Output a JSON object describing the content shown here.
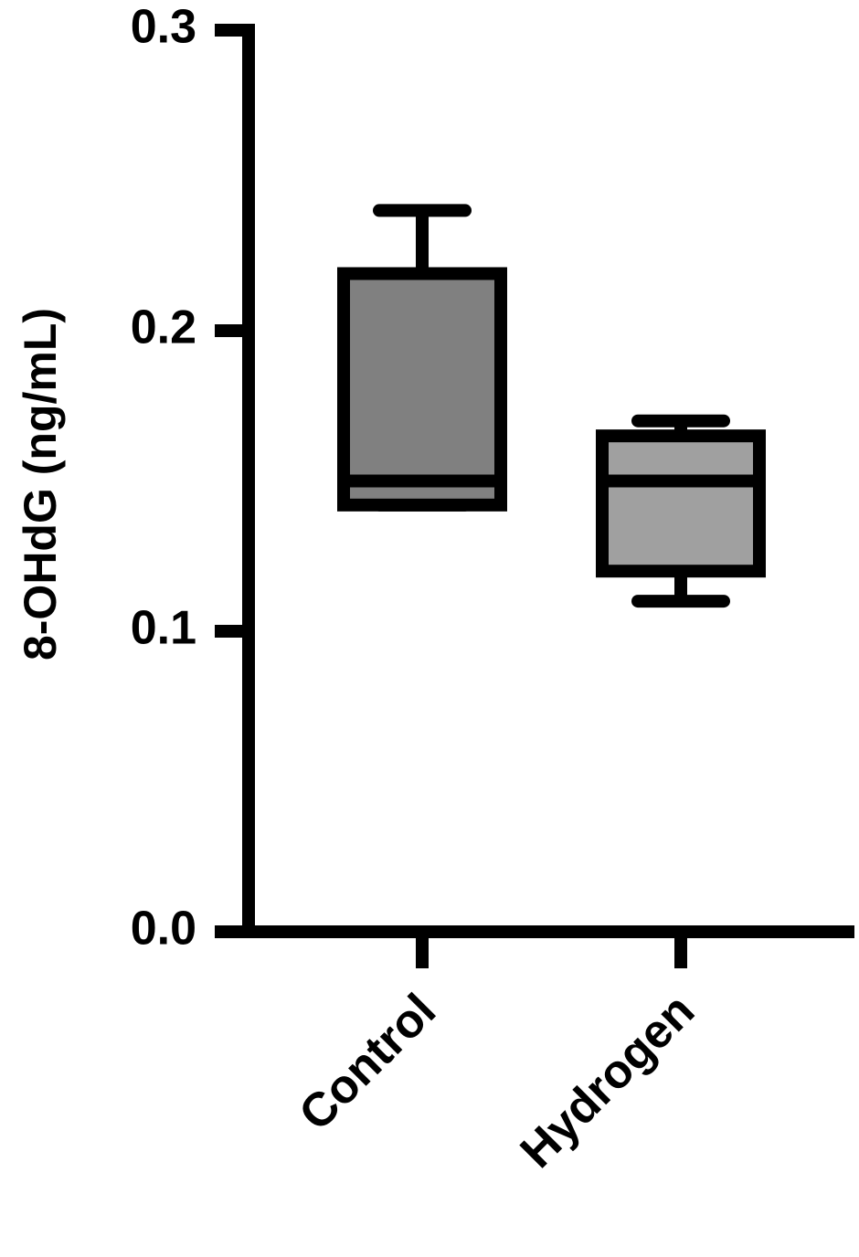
{
  "chart_data": {
    "type": "box",
    "y_label": "8-OHdG (ng/mL)",
    "categories": [
      "Control",
      "Hydrogen"
    ],
    "boxes": [
      {
        "min": 0.142,
        "q1": 0.142,
        "median": 0.15,
        "q3": 0.219,
        "max": 0.24,
        "color": "#808080"
      },
      {
        "min": 0.11,
        "q1": 0.12,
        "median": 0.15,
        "q3": 0.165,
        "max": 0.17,
        "color": "#a0a0a0"
      }
    ],
    "ylim": [
      0,
      0.3
    ],
    "yticks": [
      {
        "value": 0,
        "label": "0.0"
      },
      0.1,
      0.2,
      0.3
    ]
  }
}
